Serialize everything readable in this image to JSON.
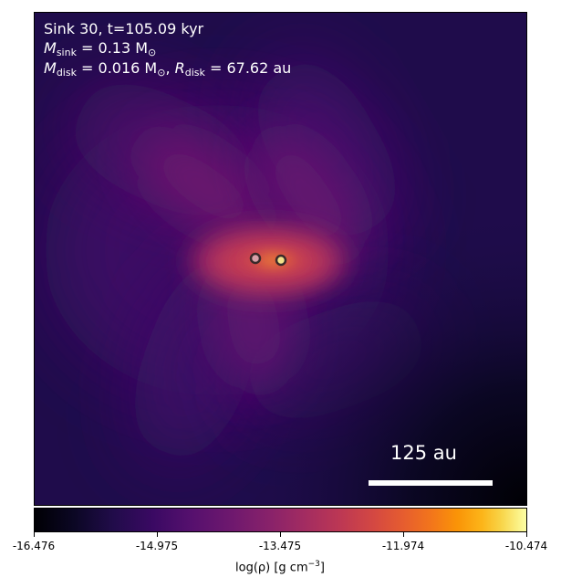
{
  "annotation": {
    "line1": "Sink 30, t=105.09 kyr",
    "m_sink_symbol": "M",
    "m_sink_sub": "sink",
    "m_sink_value": " = 0.13 M",
    "m_sink_unit_sub": "⊙",
    "m_disk_symbol": "M",
    "m_disk_sub": "disk",
    "m_disk_value": " = 0.016 M",
    "m_disk_unit_sub": "⊙",
    "r_disk_sep": ", ",
    "r_disk_symbol": "R",
    "r_disk_sub": "disk",
    "r_disk_value": " = 67.62 au"
  },
  "scale_bar": {
    "label": "125 au"
  },
  "sinks": [
    {
      "name": "sink-a",
      "edge_color": "#3a2a2a",
      "fill_color": "#d8a0a8"
    },
    {
      "name": "sink-b",
      "edge_color": "#3a2a2a",
      "fill_color": "#f2e28a"
    }
  ],
  "colorbar": {
    "ticks": [
      "-16.476",
      "-14.975",
      "-13.475",
      "-11.974",
      "-10.474"
    ],
    "label_prefix": "log(ρ) [g cm",
    "label_exp": "−3",
    "label_suffix": "]",
    "colormap": "inferno"
  }
}
